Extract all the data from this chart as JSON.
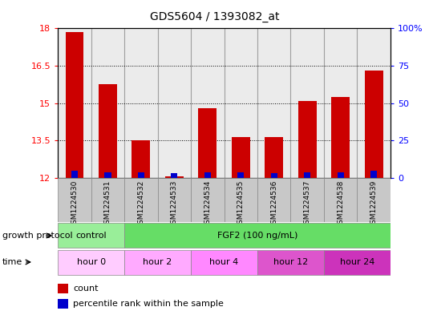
{
  "title": "GDS5604 / 1393082_at",
  "samples": [
    "GSM1224530",
    "GSM1224531",
    "GSM1224532",
    "GSM1224533",
    "GSM1224534",
    "GSM1224535",
    "GSM1224536",
    "GSM1224537",
    "GSM1224538",
    "GSM1224539"
  ],
  "count_values": [
    17.85,
    15.75,
    13.5,
    12.05,
    14.8,
    13.65,
    13.65,
    15.1,
    15.25,
    16.3
  ],
  "percentile_values": [
    12.28,
    12.22,
    12.22,
    12.18,
    12.22,
    12.22,
    12.2,
    12.22,
    12.22,
    12.28
  ],
  "ylim_left": [
    12,
    18
  ],
  "yticks_left": [
    12,
    13.5,
    15,
    16.5,
    18
  ],
  "ytick_labels_left": [
    "12",
    "13.5",
    "15",
    "16.5",
    "18"
  ],
  "ylim_right": [
    0,
    100
  ],
  "yticks_right": [
    0,
    25,
    50,
    75,
    100
  ],
  "ytick_labels_right": [
    "0",
    "25",
    "50",
    "75",
    "100%"
  ],
  "bar_color_red": "#cc0000",
  "bar_color_blue": "#0000cc",
  "bar_width": 0.55,
  "blue_bar_width": 0.2,
  "background_color": "#ffffff",
  "growth_protocol_label": "growth protocol",
  "time_label": "time",
  "control_label": "control",
  "fgf2_label": "FGF2 (100 ng/mL)",
  "time_labels": [
    "hour 0",
    "hour 2",
    "hour 4",
    "hour 12",
    "hour 24"
  ],
  "control_color": "#99ee99",
  "fgf2_color": "#66dd66",
  "time_colors_light": "#ffccff",
  "time_colors_medium": "#ee77ee",
  "time_color_list": [
    "#ffccff",
    "#ffccff",
    "#ffaaff",
    "#dd66cc",
    "#cc44bb"
  ],
  "legend_count": "count",
  "legend_percentile": "percentile rank within the sample",
  "sample_bg_color": "#c8c8c8",
  "sample_border_color": "#888888",
  "plot_border_color": "#000000"
}
